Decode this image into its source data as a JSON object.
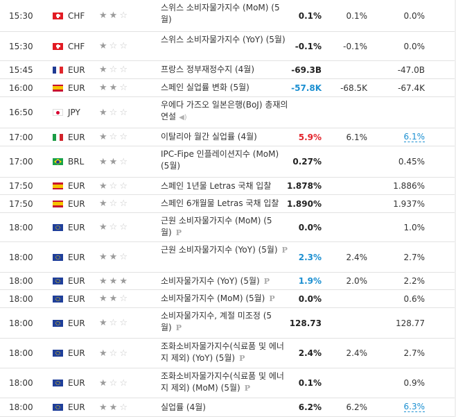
{
  "colors": {
    "star_on": "#9b9b9b",
    "star_off": "#c8c8c8",
    "negative": "#e3242b",
    "better": "#1b8fd1"
  },
  "events": [
    {
      "time": "15:30",
      "flag": "ch",
      "currency": "CHF",
      "stars": 2,
      "event": "스위스 소비자물가지수 (MoM) (5월)",
      "actual": "0.1%",
      "forecast": "0.1%",
      "previous": "0.0%"
    },
    {
      "time": "15:30",
      "flag": "ch",
      "currency": "CHF",
      "stars": 1,
      "event": "스위스 소비자물가지수 (YoY) (5월)",
      "actual": "-0.1%",
      "forecast": "-0.1%",
      "previous": "0.0%"
    },
    {
      "time": "15:45",
      "flag": "fr",
      "currency": "EUR",
      "stars": 1,
      "event": "프랑스 정부재정수지 (4월)",
      "actual": "-69.3B",
      "forecast": "",
      "previous": "-47.0B"
    },
    {
      "time": "16:00",
      "flag": "es",
      "currency": "EUR",
      "stars": 2,
      "event": "스페인 실업률 변화 (5월)",
      "actual": "-57.8K",
      "actual_color": "blue",
      "forecast": "-68.5K",
      "previous": "-67.4K"
    },
    {
      "time": "16:50",
      "flag": "jp",
      "currency": "JPY",
      "stars": 1,
      "event": "우에다 가즈오 일본은행(BoJ) 총재의 연설",
      "speech": true,
      "actual": "",
      "forecast": "",
      "previous": ""
    },
    {
      "time": "17:00",
      "flag": "it",
      "currency": "EUR",
      "stars": 1,
      "event": "이탈리아 월간 실업률 (4월)",
      "actual": "5.9%",
      "actual_color": "red",
      "forecast": "6.1%",
      "previous": "6.1%",
      "previous_link": true
    },
    {
      "time": "17:00",
      "flag": "br",
      "currency": "BRL",
      "stars": 2,
      "event": "IPC-Fipe 인플레이션지수 (MoM) (5월)",
      "actual": "0.27%",
      "forecast": "",
      "previous": "0.45%"
    },
    {
      "time": "17:50",
      "flag": "es",
      "currency": "EUR",
      "stars": 1,
      "event": "스페인 1년물 Letras 국채 입찰",
      "actual": "1.878%",
      "forecast": "",
      "previous": "1.886%"
    },
    {
      "time": "17:50",
      "flag": "es",
      "currency": "EUR",
      "stars": 1,
      "event": "스페인 6개월물 Letras 국채 입찰",
      "actual": "1.890%",
      "forecast": "",
      "previous": "1.937%"
    },
    {
      "time": "18:00",
      "flag": "eu",
      "currency": "EUR",
      "stars": 1,
      "event": "근원 소비자물가지수 (MoM) (5월)",
      "preliminary": true,
      "actual": "0.0%",
      "forecast": "",
      "previous": "1.0%"
    },
    {
      "time": "18:00",
      "flag": "eu",
      "currency": "EUR",
      "stars": 2,
      "event": "근원 소비자물가지수 (YoY) (5월)",
      "preliminary": true,
      "actual": "2.3%",
      "actual_color": "blue",
      "forecast": "2.4%",
      "previous": "2.7%"
    },
    {
      "time": "18:00",
      "flag": "eu",
      "currency": "EUR",
      "stars": 3,
      "event": "소비자물가지수 (YoY) (5월)",
      "preliminary": true,
      "actual": "1.9%",
      "actual_color": "blue",
      "forecast": "2.0%",
      "previous": "2.2%"
    },
    {
      "time": "18:00",
      "flag": "eu",
      "currency": "EUR",
      "stars": 2,
      "event": "소비자물가지수 (MoM) (5월)",
      "preliminary": true,
      "actual": "0.0%",
      "forecast": "",
      "previous": "0.6%"
    },
    {
      "time": "18:00",
      "flag": "eu",
      "currency": "EUR",
      "stars": 1,
      "event": "소비자물가지수, 계절 미조정 (5월)",
      "preliminary": true,
      "actual": "128.73",
      "forecast": "",
      "previous": "128.77"
    },
    {
      "time": "18:00",
      "flag": "eu",
      "currency": "EUR",
      "stars": 1,
      "event": "조화소비자물가지수(식료품 및 에너지 제외) (YoY) (5월)",
      "preliminary": true,
      "actual": "2.4%",
      "forecast": "2.4%",
      "previous": "2.7%"
    },
    {
      "time": "18:00",
      "flag": "eu",
      "currency": "EUR",
      "stars": 1,
      "event": "조화소비자물가지수(식료품 및 에너지 제외) (MoM) (5월)",
      "preliminary": true,
      "actual": "0.1%",
      "forecast": "",
      "previous": "0.9%"
    },
    {
      "time": "18:00",
      "flag": "eu",
      "currency": "EUR",
      "stars": 2,
      "event": "실업률 (4월)",
      "actual": "6.2%",
      "forecast": "6.2%",
      "previous": "6.3%",
      "previous_link": true
    }
  ],
  "preliminary_badge": "P",
  "speech_icon": "speaker-icon"
}
